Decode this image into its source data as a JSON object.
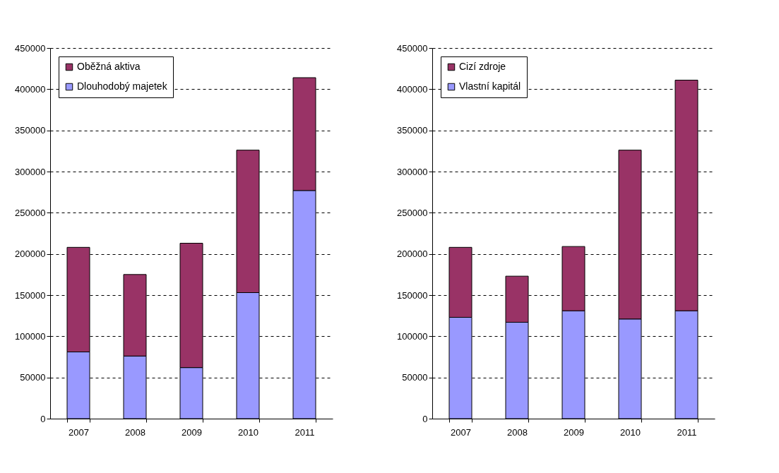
{
  "chart_data": [
    {
      "type": "bar",
      "stacked": true,
      "categories": [
        "2007",
        "2008",
        "2009",
        "2010",
        "2011"
      ],
      "ylim": [
        0,
        450000
      ],
      "yticks": [
        0,
        50000,
        100000,
        150000,
        200000,
        250000,
        300000,
        350000,
        400000,
        450000
      ],
      "grid": "y",
      "legend": "top left",
      "series": [
        {
          "name": "Dlouhodobý majetek",
          "color": "#9999ff",
          "values": [
            81000,
            76000,
            62000,
            153000,
            277000
          ]
        },
        {
          "name": "Oběžná aktiva",
          "color": "#993366",
          "values": [
            127000,
            99000,
            151000,
            173000,
            137000
          ]
        }
      ]
    },
    {
      "type": "bar",
      "stacked": true,
      "categories": [
        "2007",
        "2008",
        "2009",
        "2010",
        "2011"
      ],
      "ylim": [
        0,
        450000
      ],
      "yticks": [
        0,
        50000,
        100000,
        150000,
        200000,
        250000,
        300000,
        350000,
        400000,
        450000
      ],
      "grid": "y",
      "legend": "top left",
      "series": [
        {
          "name": "Vlastní kapitál",
          "color": "#9999ff",
          "values": [
            123000,
            117000,
            131000,
            121000,
            131000
          ]
        },
        {
          "name": "Cizí zdroje",
          "color": "#993366",
          "values": [
            85000,
            56000,
            78000,
            205000,
            280000
          ]
        }
      ]
    }
  ]
}
